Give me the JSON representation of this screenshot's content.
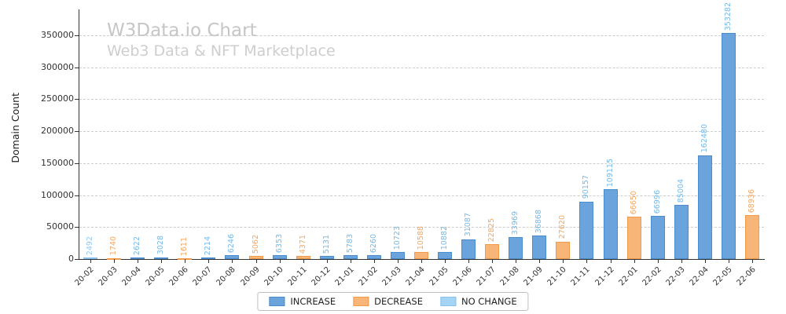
{
  "watermark": {
    "title": "W3Data.io Chart",
    "subtitle": "Web3 Data & NFT Marketplace"
  },
  "chart_data": {
    "type": "bar",
    "title": "W3Data.io Chart",
    "subtitle": "Web3 Data & NFT Marketplace",
    "ylabel": "Domain Count",
    "xlabel": "",
    "ylim": [
      0,
      380000
    ],
    "yticks": [
      0,
      50000,
      100000,
      150000,
      200000,
      250000,
      300000,
      350000
    ],
    "grid": "horizontal-dashed",
    "legend_position": "bottom-center",
    "categories": [
      "20-02",
      "20-03",
      "20-04",
      "20-05",
      "20-06",
      "20-07",
      "20-08",
      "20-09",
      "20-10",
      "20-11",
      "20-12",
      "21-01",
      "21-02",
      "21-03",
      "21-04",
      "21-05",
      "21-06",
      "21-07",
      "21-08",
      "21-09",
      "21-10",
      "21-11",
      "21-12",
      "22-01",
      "22-02",
      "22-03",
      "22-04",
      "22-05",
      "22-06"
    ],
    "series": [
      {
        "name": "Domain Count",
        "values": [
          2492,
          1740,
          2622,
          3028,
          1611,
          2214,
          6246,
          5062,
          6353,
          4371,
          5131,
          5783,
          6260,
          10723,
          10588,
          10882,
          31087,
          22825,
          33969,
          36868,
          27620,
          90157,
          109115,
          66650,
          66996,
          85004,
          162480,
          353282,
          68936
        ]
      }
    ],
    "bar_changes": [
      "no_change",
      "decrease",
      "increase",
      "increase",
      "decrease",
      "increase",
      "increase",
      "decrease",
      "increase",
      "decrease",
      "increase",
      "increase",
      "increase",
      "increase",
      "decrease",
      "increase",
      "increase",
      "decrease",
      "increase",
      "increase",
      "decrease",
      "increase",
      "increase",
      "decrease",
      "increase",
      "increase",
      "increase",
      "increase",
      "decrease"
    ],
    "colors": {
      "increase": "#6ba3dc",
      "increase_edge": "#4a8ccc",
      "decrease": "#f7b577",
      "decrease_edge": "#f09a4a",
      "no_change": "#a6d4f7",
      "no_change_edge": "#86c0ec",
      "label_increase": "#74b9e8",
      "label_decrease": "#f3a763",
      "label_no_change": "#8fcaf0",
      "grid": "#cccccc",
      "axis": "#333333",
      "watermark": "#c8c8c8"
    }
  },
  "legend": {
    "items": [
      {
        "label": "INCREASE",
        "type": "increase"
      },
      {
        "label": "DECREASE",
        "type": "decrease"
      },
      {
        "label": "NO CHANGE",
        "type": "no_change"
      }
    ]
  }
}
